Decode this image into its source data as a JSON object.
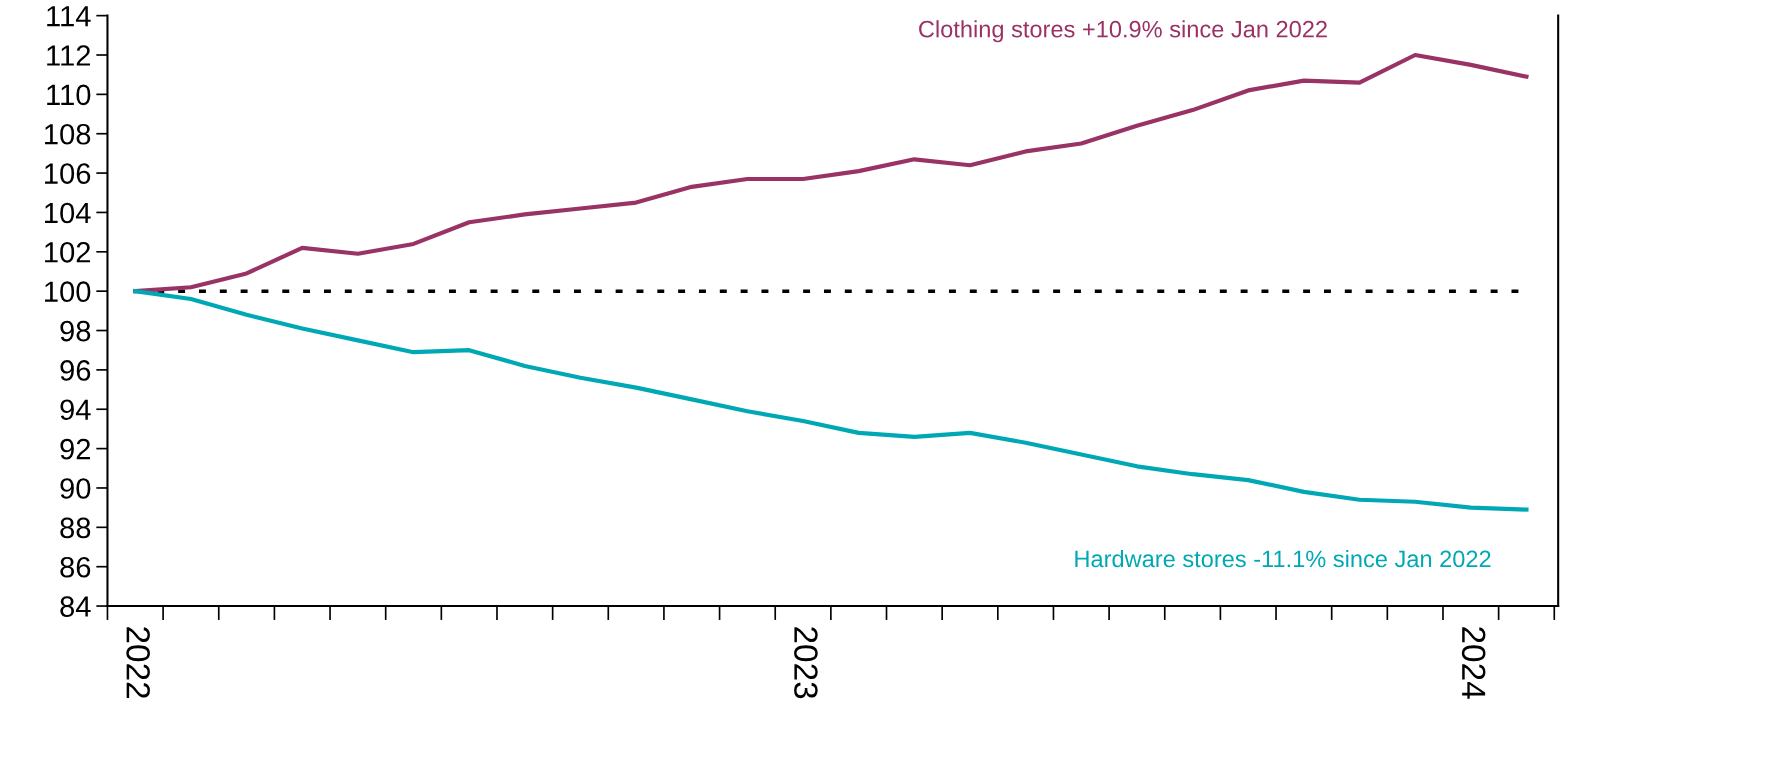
{
  "chart_data": {
    "type": "line",
    "categories": [
      "2022",
      null,
      null,
      null,
      null,
      null,
      null,
      null,
      null,
      null,
      null,
      null,
      "2023",
      null,
      null,
      null,
      null,
      null,
      null,
      null,
      null,
      null,
      null,
      null,
      "2024",
      null
    ],
    "series": [
      {
        "name": "Clothing stores +10.9% since Jan 2022",
        "color": "#993366",
        "values": [
          100,
          100.2,
          100.9,
          102.2,
          101.9,
          102.4,
          103.5,
          103.9,
          104.2,
          104.5,
          105.3,
          105.7,
          105.7,
          106.1,
          106.7,
          106.4,
          107.1,
          107.5,
          108.4,
          109.2,
          110.2,
          110.7,
          110.6,
          112.0,
          111.5,
          110.9
        ]
      },
      {
        "name": "Hardware stores -11.1% since Jan 2022",
        "color": "#00a8b5",
        "values": [
          100,
          99.6,
          98.8,
          98.1,
          97.5,
          96.9,
          97.0,
          96.2,
          95.6,
          95.1,
          94.5,
          93.9,
          93.4,
          92.8,
          92.6,
          92.8,
          92.3,
          91.7,
          91.1,
          90.7,
          90.4,
          89.8,
          89.4,
          89.3,
          89.0,
          88.9
        ]
      }
    ],
    "ylim": [
      84,
      114
    ],
    "yticks": [
      84,
      86,
      88,
      90,
      92,
      94,
      96,
      98,
      100,
      102,
      104,
      106,
      108,
      110,
      112,
      114
    ],
    "ref_lines": [
      {
        "axis": "y",
        "value": 100,
        "color": "#000000",
        "line_style": "dotted"
      }
    ],
    "grid": false,
    "legend": false,
    "marker": "none",
    "line_style": "solid"
  }
}
